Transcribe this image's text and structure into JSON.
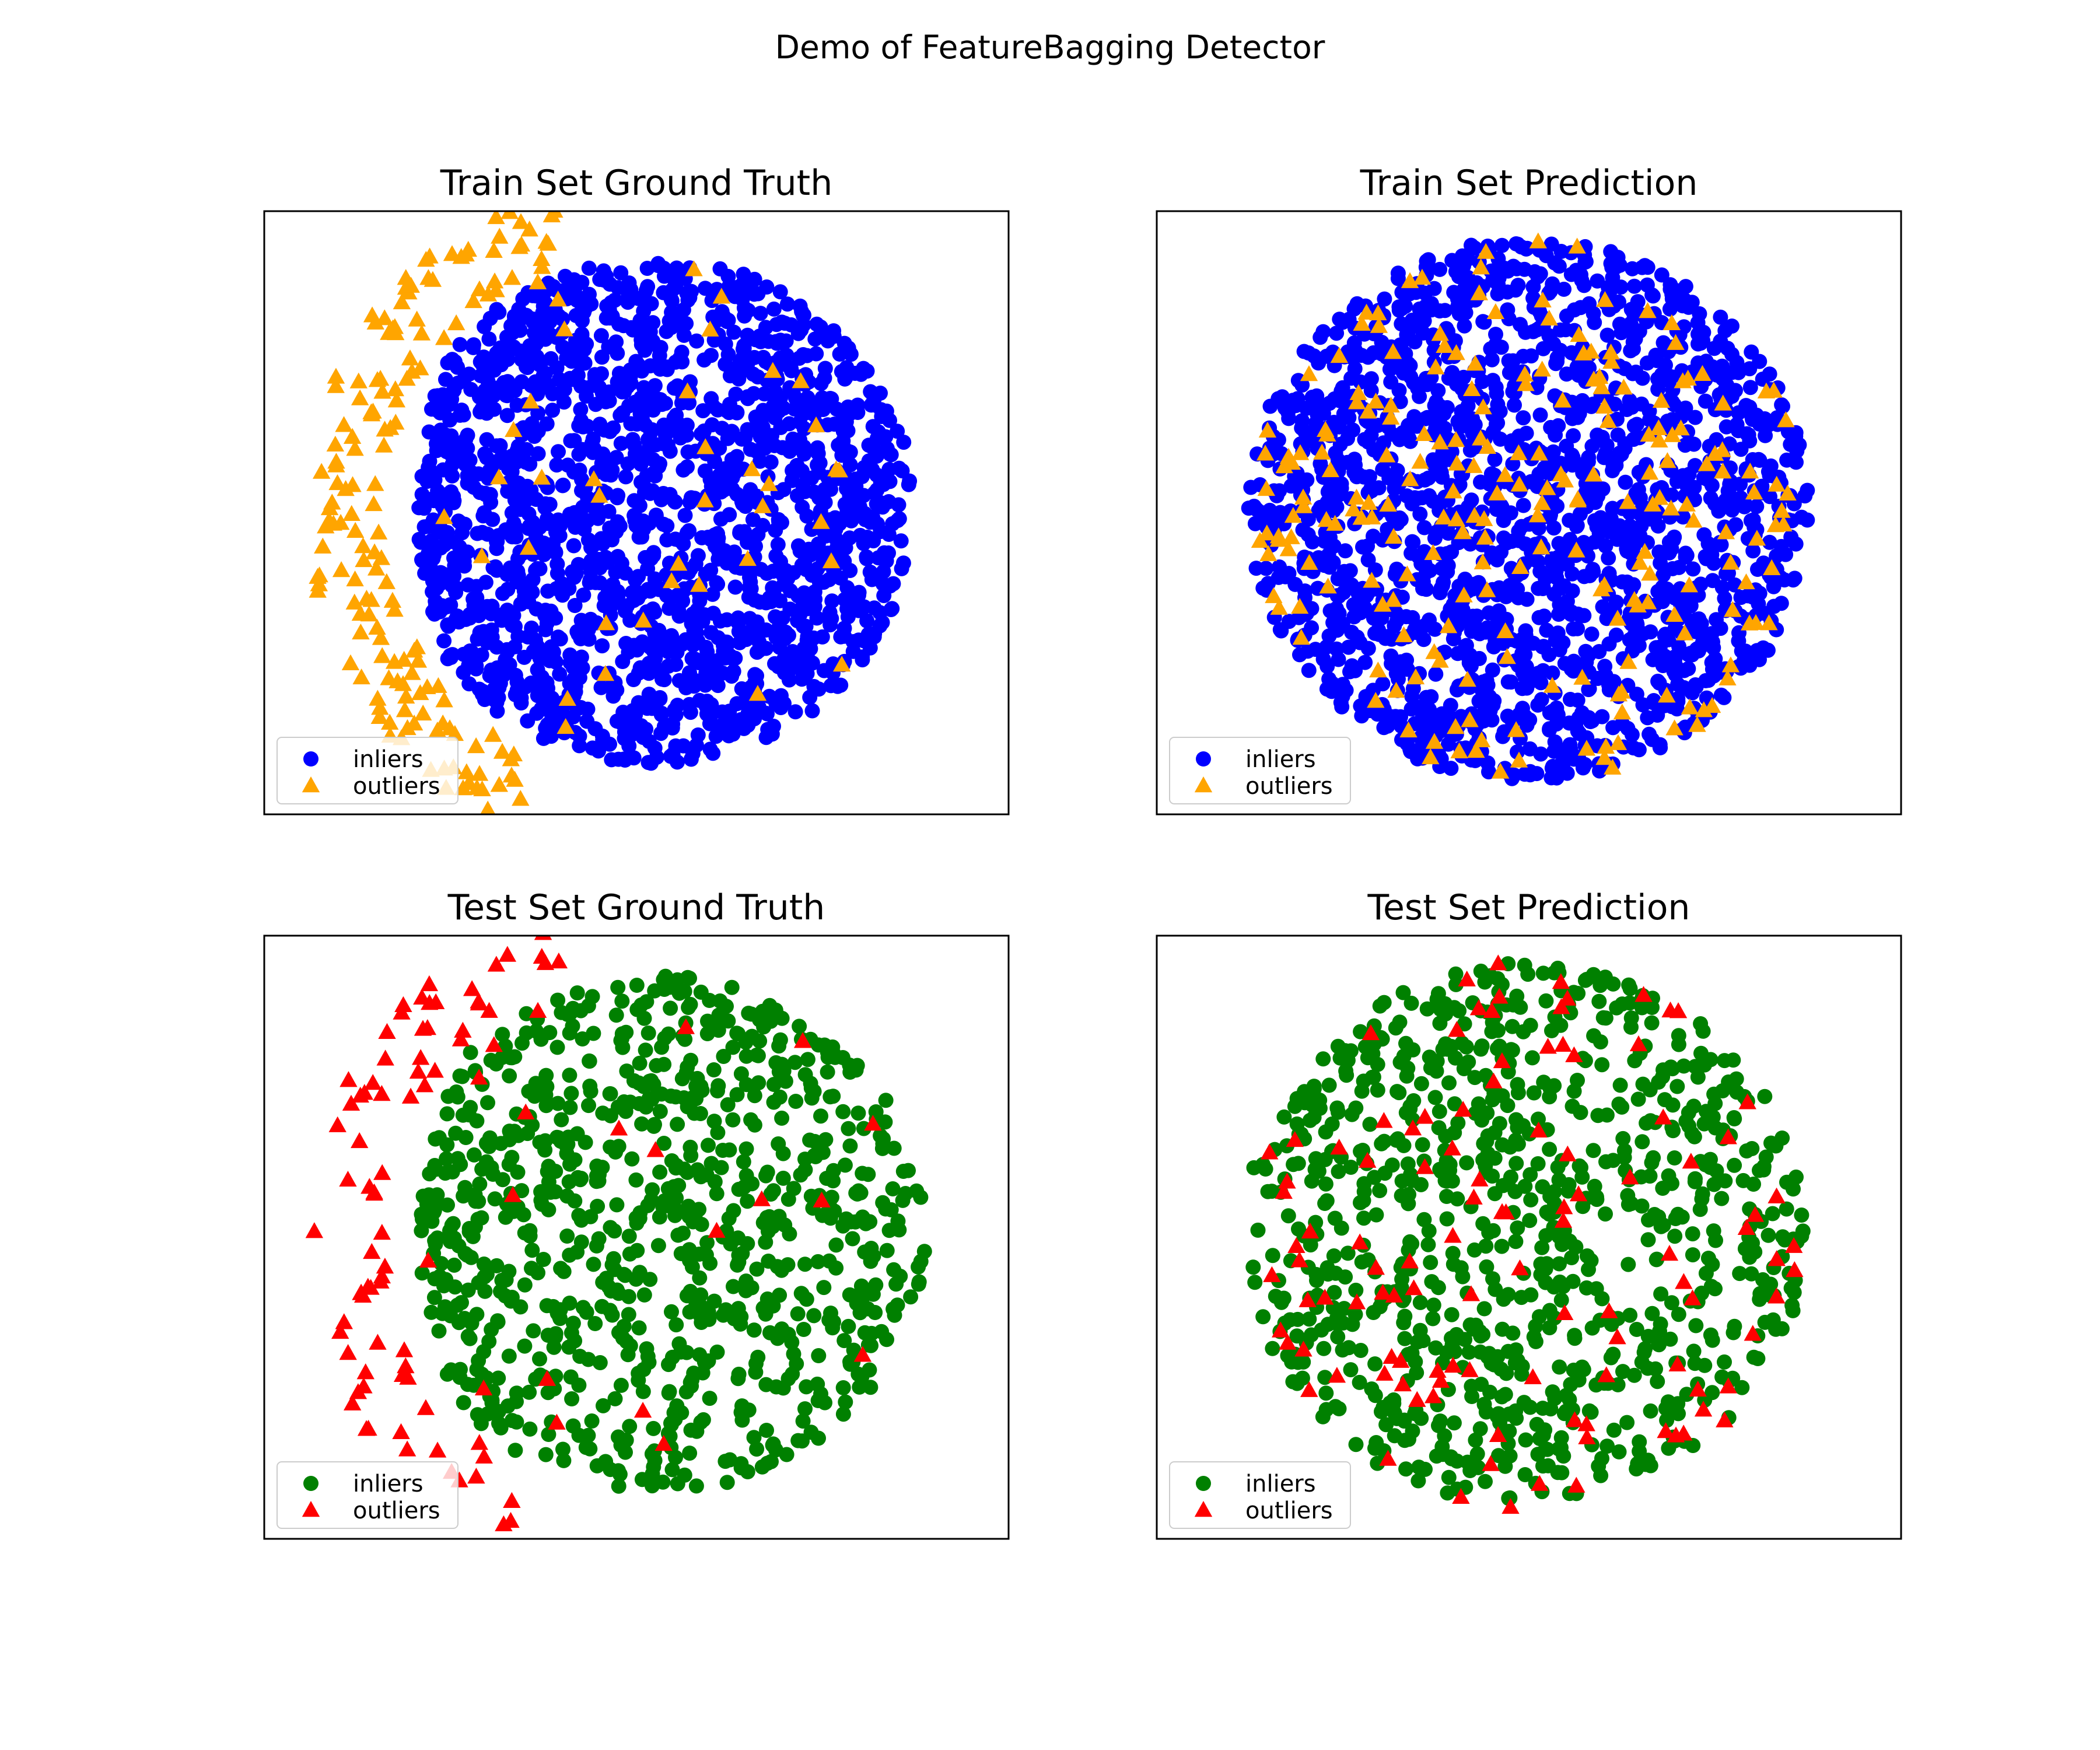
{
  "figure": {
    "suptitle": "Demo of FeatureBagging Detector"
  },
  "colors": {
    "train_inlier": "#0000ff",
    "train_outlier": "#ffa500",
    "test_inlier": "#008000",
    "test_outlier": "#ff0000",
    "axes_frame": "#000000"
  },
  "chart_data": [
    {
      "type": "scatter",
      "title": "Train Set Ground Truth",
      "xlabel": "",
      "ylabel": "",
      "axes_ticks": false,
      "grid": false,
      "legend_position": "lower-left",
      "legend": [
        "inliers",
        "outliers"
      ],
      "series": [
        {
          "name": "inliers",
          "marker": "circle",
          "color": "#0000ff",
          "count": 1800
        },
        {
          "name": "outliers",
          "marker": "triangle",
          "color": "#ffa500",
          "count": 200
        }
      ],
      "outlier_distribution": "crescent-left"
    },
    {
      "type": "scatter",
      "title": "Train Set Prediction",
      "xlabel": "",
      "ylabel": "",
      "axes_ticks": false,
      "grid": false,
      "legend_position": "lower-left",
      "legend": [
        "inliers",
        "outliers"
      ],
      "series": [
        {
          "name": "inliers",
          "marker": "circle",
          "color": "#0000ff",
          "count": 1800
        },
        {
          "name": "outliers",
          "marker": "triangle",
          "color": "#ffa500",
          "count": 220
        }
      ],
      "outlier_distribution": "scattered"
    },
    {
      "type": "scatter",
      "title": "Test Set Ground Truth",
      "xlabel": "",
      "ylabel": "",
      "axes_ticks": false,
      "grid": false,
      "legend_position": "lower-left",
      "legend": [
        "inliers",
        "outliers"
      ],
      "series": [
        {
          "name": "inliers",
          "marker": "circle",
          "color": "#008000",
          "count": 900
        },
        {
          "name": "outliers",
          "marker": "triangle",
          "color": "#ff0000",
          "count": 100
        }
      ],
      "outlier_distribution": "crescent-left"
    },
    {
      "type": "scatter",
      "title": "Test Set Prediction",
      "xlabel": "",
      "ylabel": "",
      "axes_ticks": false,
      "grid": false,
      "legend_position": "lower-left",
      "legend": [
        "inliers",
        "outliers"
      ],
      "series": [
        {
          "name": "inliers",
          "marker": "circle",
          "color": "#008000",
          "count": 900
        },
        {
          "name": "outliers",
          "marker": "triangle",
          "color": "#ff0000",
          "count": 110
        }
      ],
      "outlier_distribution": "scattered"
    }
  ]
}
